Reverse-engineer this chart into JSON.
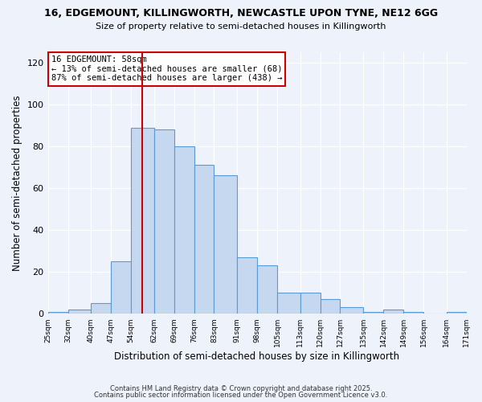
{
  "title": "16, EDGEMOUNT, KILLINGWORTH, NEWCASTLE UPON TYNE, NE12 6GG",
  "subtitle": "Size of property relative to semi-detached houses in Killingworth",
  "xlabel": "Distribution of semi-detached houses by size in Killingworth",
  "ylabel": "Number of semi-detached properties",
  "bins": [
    25,
    32,
    40,
    47,
    54,
    62,
    69,
    76,
    83,
    91,
    98,
    105,
    113,
    120,
    127,
    135,
    142,
    149,
    156,
    164,
    171
  ],
  "counts": [
    1,
    2,
    5,
    25,
    89,
    88,
    80,
    71,
    66,
    27,
    23,
    10,
    10,
    7,
    3,
    1,
    2,
    1,
    0,
    1
  ],
  "bar_color": "#c5d8f0",
  "bar_edge_color": "#5b9bd5",
  "vline_x": 58,
  "vline_color": "#cc0000",
  "annotation_title": "16 EDGEMOUNT: 58sqm",
  "annotation_line1": "← 13% of semi-detached houses are smaller (68)",
  "annotation_line2": "87% of semi-detached houses are larger (438) →",
  "annotation_box_color": "#ffffff",
  "annotation_box_edge": "#cc0000",
  "ylim": [
    0,
    125
  ],
  "yticks": [
    0,
    20,
    40,
    60,
    80,
    100,
    120
  ],
  "footer1": "Contains HM Land Registry data © Crown copyright and database right 2025.",
  "footer2": "Contains public sector information licensed under the Open Government Licence v3.0.",
  "bg_color": "#eef2fb",
  "grid_color": "#ffffff",
  "tick_labels": [
    "25sqm",
    "32sqm",
    "40sqm",
    "47sqm",
    "54sqm",
    "62sqm",
    "69sqm",
    "76sqm",
    "83sqm",
    "91sqm",
    "98sqm",
    "105sqm",
    "113sqm",
    "120sqm",
    "127sqm",
    "135sqm",
    "142sqm",
    "149sqm",
    "156sqm",
    "164sqm",
    "171sqm"
  ]
}
